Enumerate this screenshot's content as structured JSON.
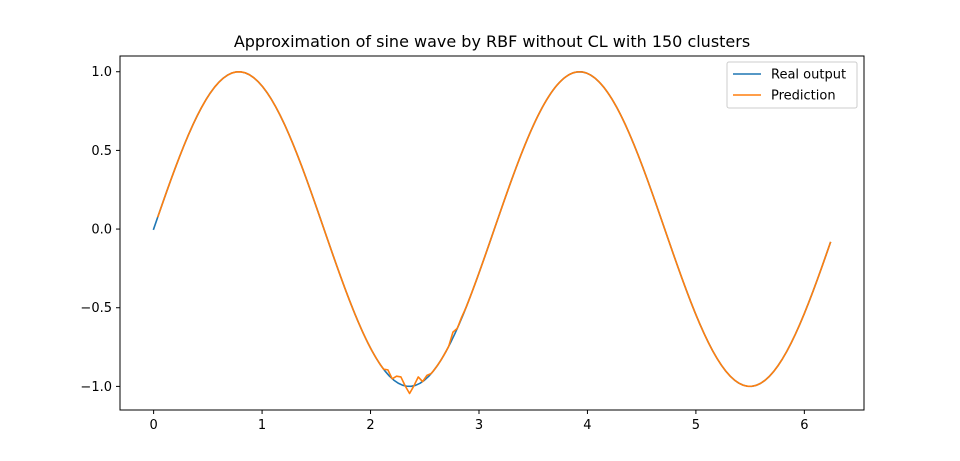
{
  "chart_data": {
    "type": "line",
    "title": "Approximation of sine wave by RBF without CL with 150 clusters",
    "xlabel": "",
    "ylabel": "",
    "xlim": [
      -0.31,
      6.55
    ],
    "ylim": [
      -1.15,
      1.1
    ],
    "x_ticks": [
      0,
      1,
      2,
      3,
      4,
      5,
      6
    ],
    "x_tick_labels": [
      "0",
      "1",
      "2",
      "3",
      "4",
      "5",
      "6"
    ],
    "y_ticks": [
      -1.0,
      -0.5,
      0.0,
      0.5,
      1.0
    ],
    "y_tick_labels": [
      "−1.0",
      "−0.5",
      "0.0",
      "0.5",
      "1.0"
    ],
    "grid": false,
    "legend_position": "top-right",
    "series": [
      {
        "name": "Real output",
        "color": "#1f77b4",
        "function": "sin(2x)",
        "x_start": 0,
        "x_end": 6.24,
        "points": 156
      },
      {
        "name": "Prediction",
        "color": "#ff7f0e",
        "function": "sin(2x) with local deviations",
        "x_start": 0.04,
        "x_end": 6.24,
        "points": 156,
        "deviations": [
          {
            "x": 2.16,
            "y": -0.895
          },
          {
            "x": 2.24,
            "y": -0.935
          },
          {
            "x": 2.28,
            "y": -0.94
          },
          {
            "x": 2.36,
            "y": -1.045
          },
          {
            "x": 2.44,
            "y": -0.94
          },
          {
            "x": 2.52,
            "y": -0.93
          },
          {
            "x": 2.76,
            "y": -0.655
          },
          {
            "x": 2.84,
            "y": -0.56
          }
        ]
      }
    ]
  }
}
